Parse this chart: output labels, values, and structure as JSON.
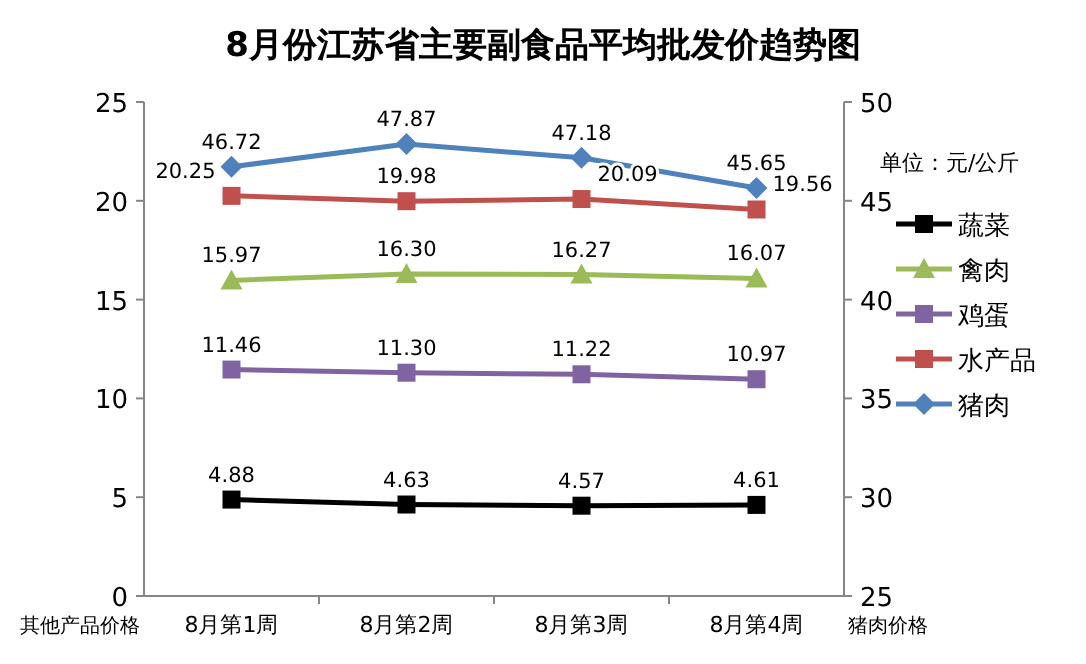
{
  "chart_data": {
    "type": "line",
    "title": "8月份江苏省主要副食品平均批发价趋势图",
    "categories": [
      "8月第1周",
      "8月第2周",
      "8月第3周",
      "8月第4周"
    ],
    "ylabel": "其他产品价格",
    "y2label": "猪肉价格",
    "legend_title": "单位：元/公斤",
    "ylim": [
      0,
      25
    ],
    "yticks": [
      0,
      5,
      10,
      15,
      20,
      25
    ],
    "y2lim": [
      25,
      50
    ],
    "y2ticks": [
      25,
      30,
      35,
      40,
      45,
      50
    ],
    "legend": "right",
    "grid": false,
    "series": [
      {
        "name": "蔬菜",
        "color": "#000000",
        "marker": "square",
        "values": [
          4.88,
          4.63,
          4.57,
          4.61
        ],
        "value_labels": [
          "4.88",
          "4.63",
          "4.57",
          "4.61"
        ]
      },
      {
        "name": "禽肉",
        "color": "#9bbb59",
        "marker": "triangle",
        "values": [
          15.97,
          16.3,
          16.27,
          16.07
        ],
        "value_labels": [
          "15.97",
          "16.30",
          "16.27",
          "16.07"
        ]
      },
      {
        "name": "鸡蛋",
        "color": "#8064a2",
        "marker": "square",
        "values": [
          11.46,
          11.3,
          11.22,
          10.97
        ],
        "value_labels": [
          "11.46",
          "11.30",
          "11.22",
          "10.97"
        ]
      },
      {
        "name": "水产品",
        "color": "#c0504d",
        "marker": "square",
        "values": [
          20.25,
          19.98,
          20.09,
          19.56
        ],
        "value_labels": [
          "20.25",
          "19.98",
          "20.09",
          "19.56"
        ]
      },
      {
        "name": "猪肉",
        "color": "#4f81bd",
        "marker": "diamond",
        "axis": "y2",
        "values": [
          46.72,
          47.87,
          47.18,
          45.65
        ],
        "value_labels": [
          "46.72",
          "47.87",
          "47.18",
          "45.65"
        ]
      }
    ]
  }
}
